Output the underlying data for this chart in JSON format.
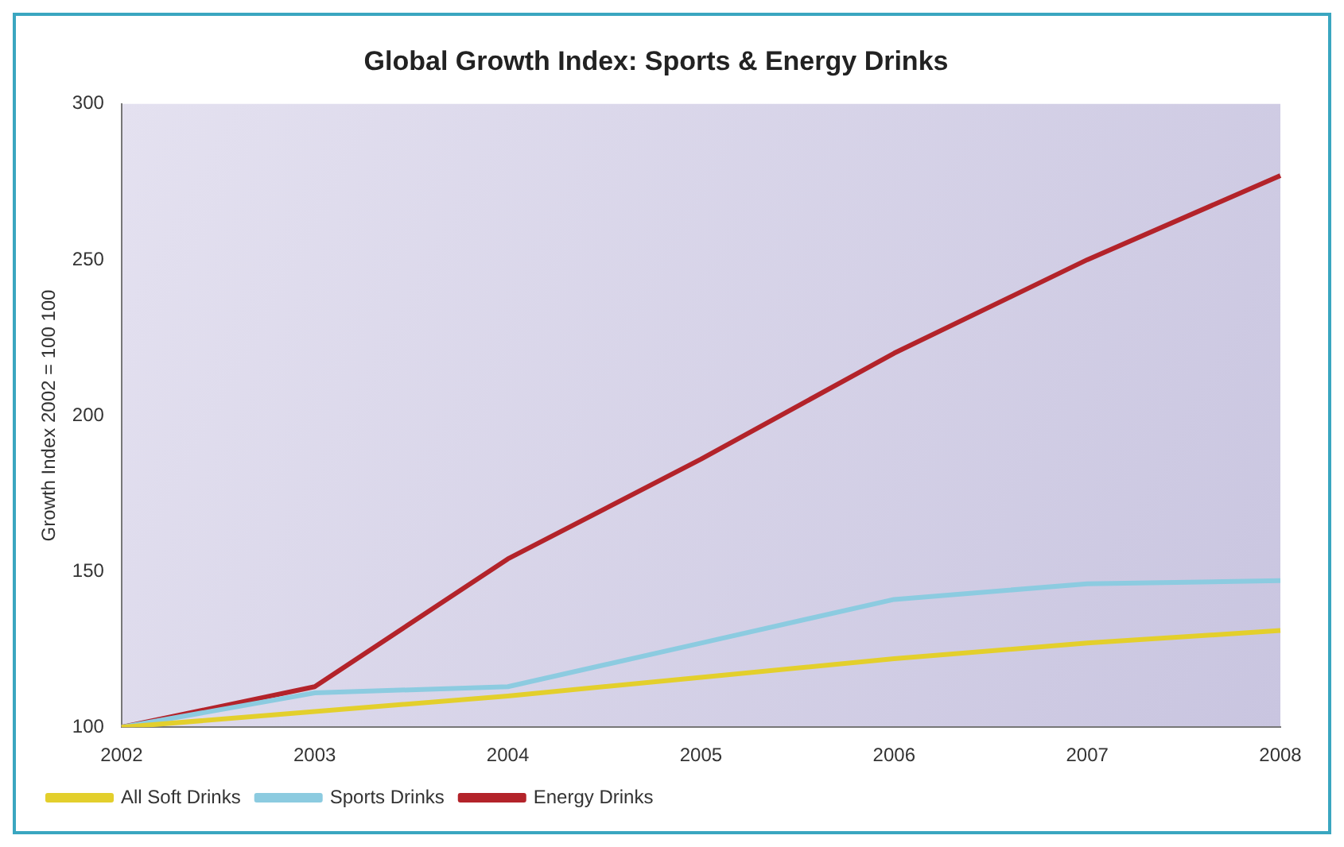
{
  "chart_data": {
    "type": "line",
    "title": "Global Growth Index: Sports & Energy Drinks",
    "ylabel": "Growth Index 2002 = 100 100",
    "categories": [
      "2002",
      "2003",
      "2004",
      "2005",
      "2006",
      "2007",
      "2008"
    ],
    "series": [
      {
        "name": "All Soft Drinks",
        "color": "#e3cf2c",
        "values": [
          100,
          105,
          110,
          116,
          122,
          127,
          131
        ]
      },
      {
        "name": "Sports Drinks",
        "color": "#8ccbe0",
        "values": [
          100,
          111,
          113,
          127,
          141,
          146,
          147
        ]
      },
      {
        "name": "Energy Drinks",
        "color": "#b3232a",
        "values": [
          100,
          113,
          154,
          186,
          220,
          250,
          277
        ]
      }
    ],
    "ylim": [
      100,
      300
    ],
    "yticks": [
      100,
      150,
      200,
      250,
      300
    ],
    "grid": false,
    "legend": "bottom left",
    "marker": "none",
    "line_style": "solid"
  }
}
